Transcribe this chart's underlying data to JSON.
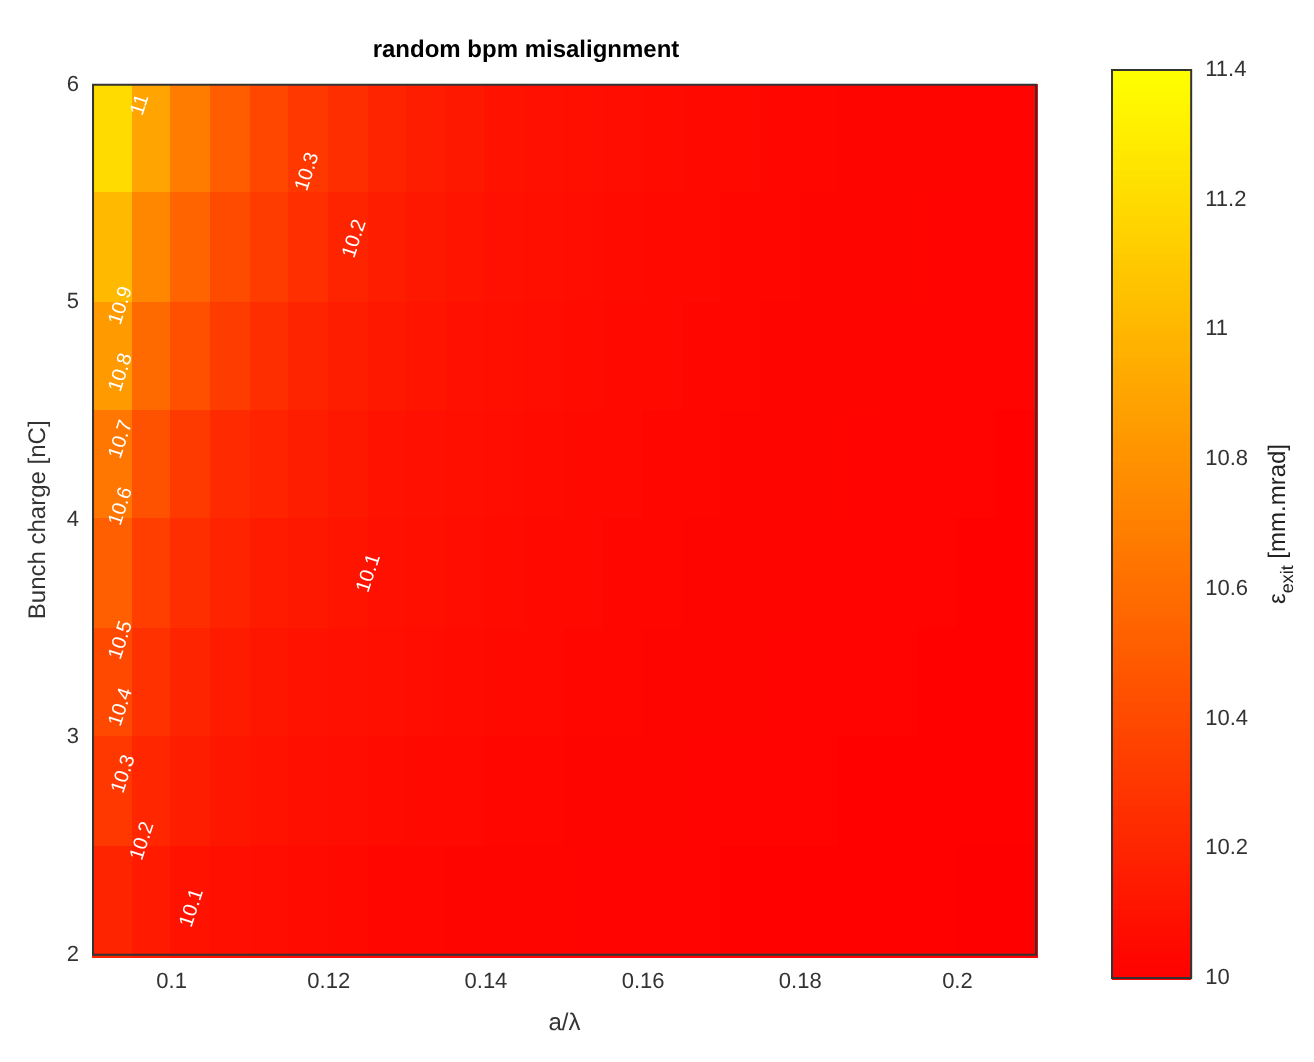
{
  "chart_data": {
    "type": "heatmap",
    "title": "random bpm misalignment",
    "xlabel": "a/λ",
    "ylabel": "Bunch charge [nC]",
    "clabel": "ε$_{exit}$ [mm.mrad]",
    "x": [
      0.0925,
      0.0975,
      0.1025,
      0.1075,
      0.1125,
      0.1175,
      0.1225,
      0.1275,
      0.1325,
      0.1375,
      0.1425,
      0.1475,
      0.1525,
      0.1575,
      0.1625,
      0.1675,
      0.1725,
      0.1775,
      0.1825,
      0.1875,
      0.1925,
      0.1975,
      0.2025,
      0.2075
    ],
    "cells": [
      [
        11.2,
        10.9,
        10.68,
        10.51,
        10.39,
        10.31,
        10.25,
        10.2,
        10.16,
        10.13,
        10.1,
        10.09,
        10.08,
        10.07,
        10.06,
        10.05,
        10.05,
        10.04,
        10.04,
        10.03,
        10.03,
        10.03,
        10.02,
        10.02
      ],
      [
        11.02,
        10.74,
        10.55,
        10.41,
        10.33,
        10.26,
        10.2,
        10.16,
        10.13,
        10.11,
        10.09,
        10.08,
        10.07,
        10.06,
        10.05,
        10.05,
        10.04,
        10.04,
        10.03,
        10.03,
        10.03,
        10.02,
        10.02,
        10.02
      ],
      [
        10.85,
        10.58,
        10.44,
        10.33,
        10.25,
        10.2,
        10.16,
        10.13,
        10.11,
        10.09,
        10.08,
        10.07,
        10.06,
        10.05,
        10.05,
        10.04,
        10.04,
        10.03,
        10.03,
        10.03,
        10.02,
        10.02,
        10.02,
        10.02
      ],
      [
        10.65,
        10.45,
        10.32,
        10.23,
        10.19,
        10.16,
        10.13,
        10.1,
        10.09,
        10.08,
        10.07,
        10.06,
        10.05,
        10.05,
        10.04,
        10.04,
        10.03,
        10.03,
        10.03,
        10.02,
        10.02,
        10.02,
        10.02,
        10.01
      ],
      [
        10.52,
        10.34,
        10.25,
        10.19,
        10.15,
        10.13,
        10.11,
        10.09,
        10.08,
        10.07,
        10.06,
        10.05,
        10.05,
        10.04,
        10.04,
        10.03,
        10.03,
        10.03,
        10.02,
        10.02,
        10.02,
        10.02,
        10.01,
        10.01
      ],
      [
        10.4,
        10.27,
        10.2,
        10.15,
        10.12,
        10.1,
        10.09,
        10.08,
        10.07,
        10.06,
        10.05,
        10.05,
        10.04,
        10.04,
        10.03,
        10.03,
        10.03,
        10.02,
        10.02,
        10.02,
        10.02,
        10.01,
        10.01,
        10.01
      ],
      [
        10.31,
        10.21,
        10.16,
        10.12,
        10.1,
        10.08,
        10.07,
        10.06,
        10.05,
        10.05,
        10.04,
        10.04,
        10.03,
        10.03,
        10.03,
        10.02,
        10.02,
        10.02,
        10.02,
        10.01,
        10.01,
        10.01,
        10.01,
        10.01
      ],
      [
        10.2,
        10.14,
        10.1,
        10.08,
        10.07,
        10.06,
        10.05,
        10.04,
        10.04,
        10.03,
        10.03,
        10.03,
        10.02,
        10.02,
        10.02,
        10.02,
        10.01,
        10.01,
        10.01,
        10.01,
        10.01,
        10.01,
        10.0,
        10.0
      ]
    ],
    "xlim": [
      0.09,
      0.21
    ],
    "xticks": [
      0.1,
      0.12,
      0.14,
      0.16,
      0.18,
      0.2
    ],
    "ylim": [
      2,
      6
    ],
    "yticks": [
      2,
      3,
      4,
      5,
      6
    ],
    "clim": [
      10,
      11.4
    ],
    "cticks": [
      10,
      10.2,
      10.4,
      10.6,
      10.8,
      11,
      11.2,
      11.4
    ],
    "annotations": [
      "11",
      "10.3",
      "10.2",
      "10.9",
      "10.8",
      "10.7",
      "10.6",
      "10.1",
      "10.5",
      "10.4",
      "10.3",
      "10.2",
      "10.1"
    ]
  }
}
